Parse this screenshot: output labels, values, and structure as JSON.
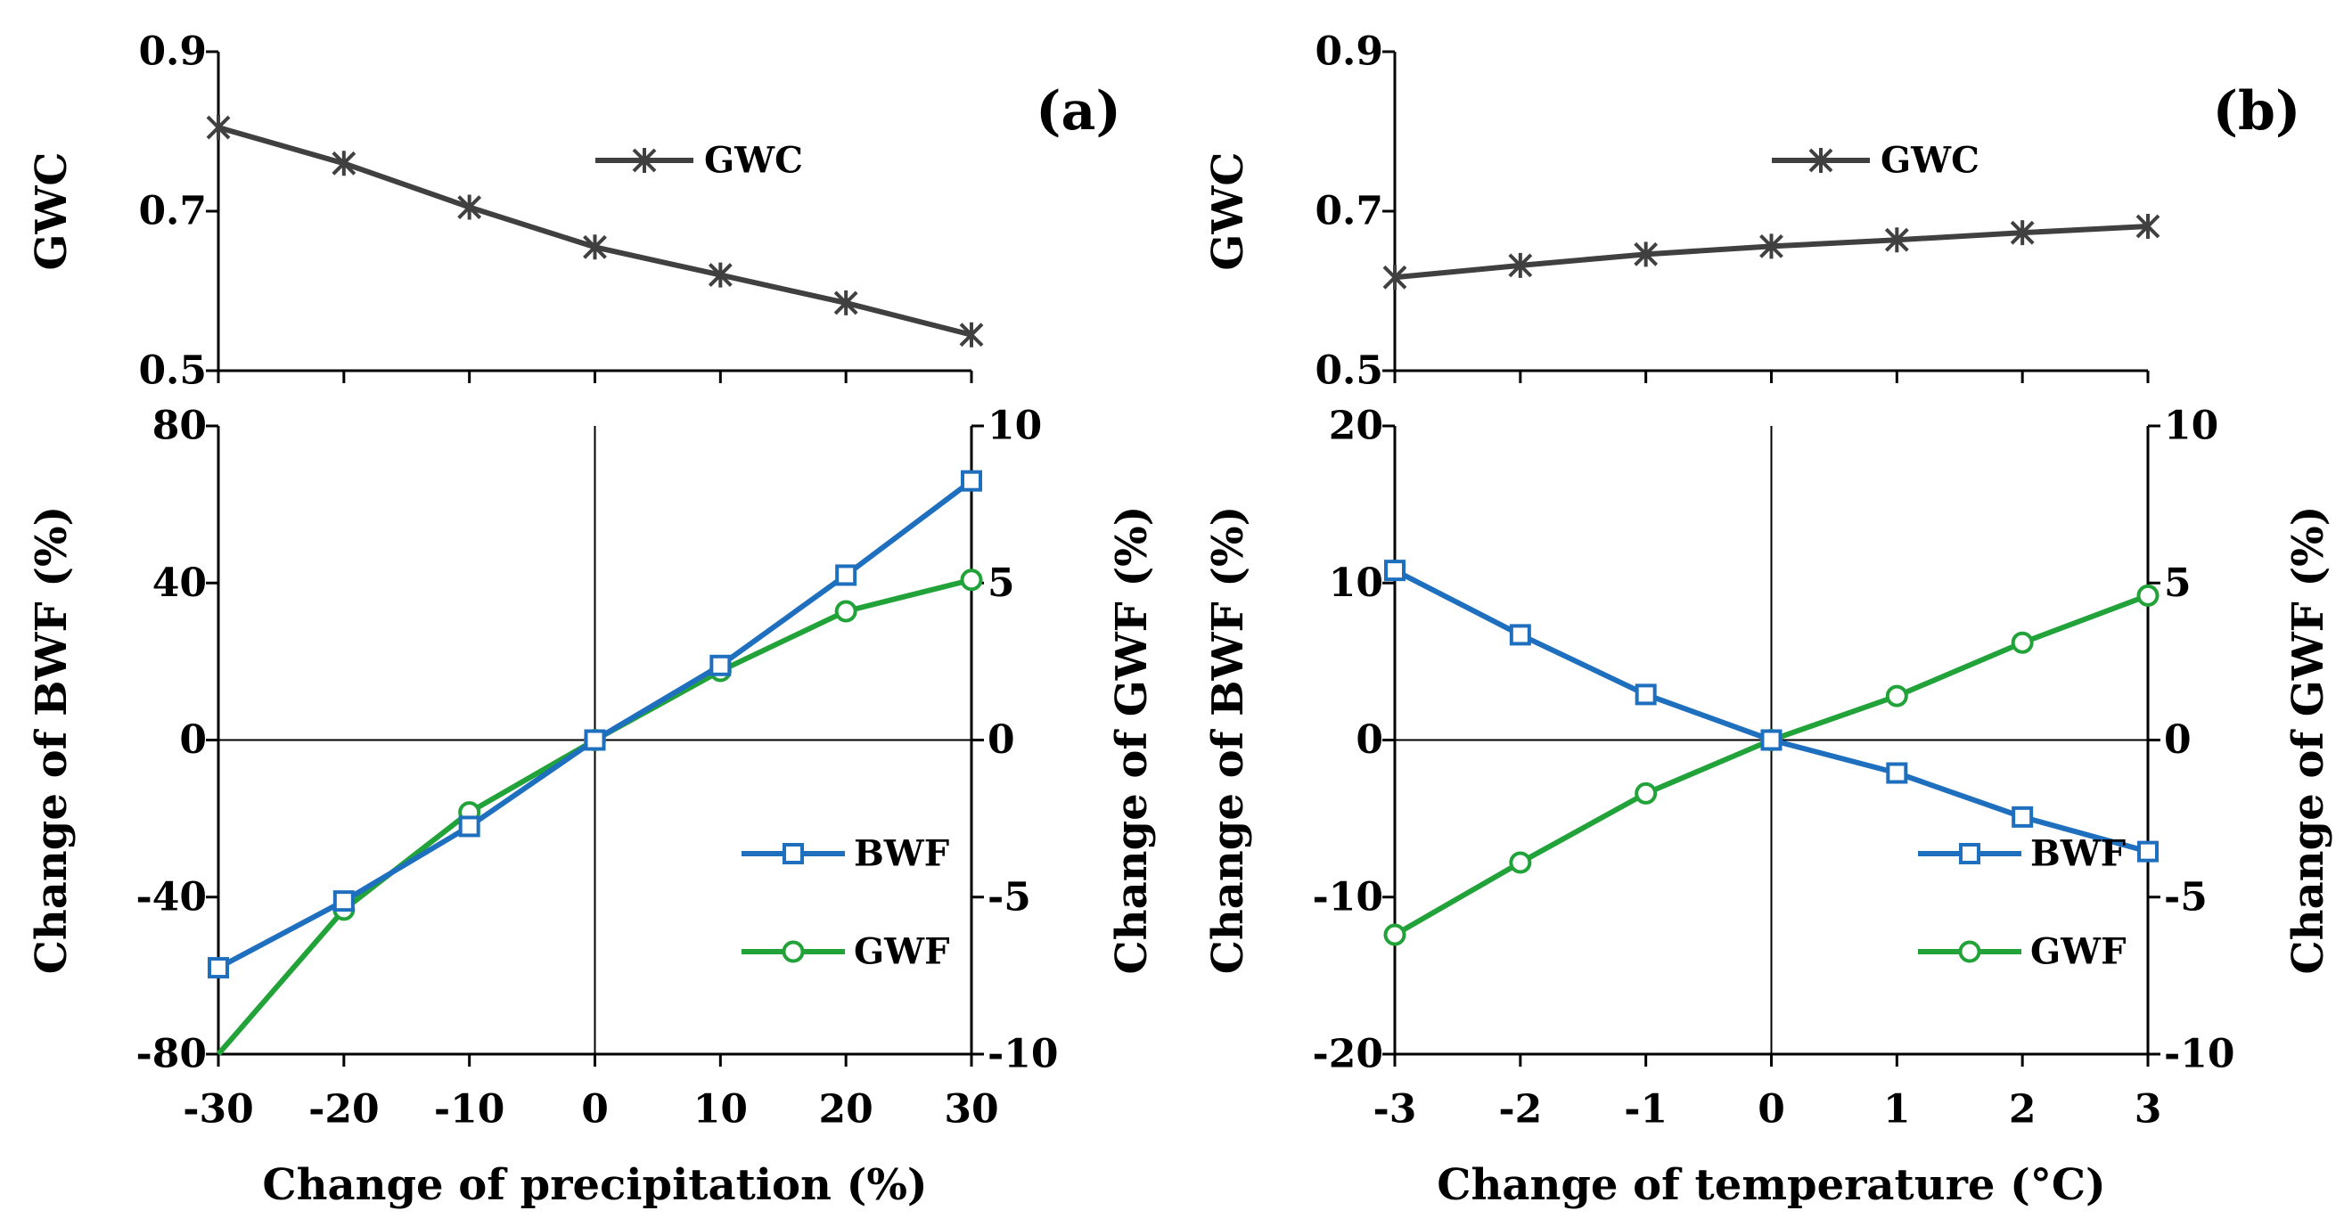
{
  "figure": {
    "panels": [
      {
        "tag": "(a)",
        "xlabel": "Change of precipitation (%)"
      },
      {
        "tag": "(b)",
        "xlabel": "Change of temperature (°C)"
      }
    ]
  },
  "chart_data": [
    {
      "type": "line",
      "panel": "a-top",
      "title": "",
      "x": [
        -30,
        -20,
        -10,
        0,
        10,
        20,
        30
      ],
      "xlabel": "",
      "ylabel": "GWC",
      "ylim": [
        0.5,
        0.9
      ],
      "yticks": [
        0.5,
        0.7,
        0.9
      ],
      "series": [
        {
          "name": "GWC",
          "color": "#404040",
          "marker": "asterisk",
          "values": [
            0.805,
            0.76,
            0.705,
            0.655,
            0.62,
            0.585,
            0.545
          ]
        }
      ]
    },
    {
      "type": "line",
      "panel": "a-bottom",
      "title": "",
      "x": [
        -30,
        -20,
        -10,
        0,
        10,
        20,
        30
      ],
      "xticks": [
        -30,
        -20,
        -10,
        0,
        10,
        20,
        30
      ],
      "xlabel": "Change of precipitation (%)",
      "ylabel": "Change of BWF (%)",
      "ylim": [
        -80,
        80
      ],
      "yticks": [
        -80,
        -40,
        0,
        40,
        80
      ],
      "y2label": "Change of GWF (%)",
      "y2lim": [
        -10,
        10
      ],
      "y2ticks": [
        -10,
        -5,
        0,
        5,
        10
      ],
      "series": [
        {
          "name": "BWF",
          "axis": "left",
          "color": "#1f6fbf",
          "marker": "square",
          "values": [
            -58,
            -41,
            -22,
            0,
            19,
            42,
            66
          ]
        },
        {
          "name": "GWF",
          "axis": "right",
          "color": "#22a33a",
          "marker": "circle",
          "values": [
            -10.0,
            -5.4,
            -2.3,
            0,
            2.2,
            4.1,
            5.1
          ]
        }
      ]
    },
    {
      "type": "line",
      "panel": "b-top",
      "title": "",
      "x": [
        -3,
        -2,
        -1,
        0,
        1,
        2,
        3
      ],
      "xlabel": "",
      "ylabel": "GWC",
      "ylim": [
        0.5,
        0.9
      ],
      "yticks": [
        0.5,
        0.7,
        0.9
      ],
      "series": [
        {
          "name": "GWC",
          "color": "#404040",
          "marker": "asterisk",
          "values": [
            0.617,
            0.632,
            0.646,
            0.656,
            0.664,
            0.673,
            0.681
          ]
        }
      ]
    },
    {
      "type": "line",
      "panel": "b-bottom",
      "title": "",
      "x": [
        -3,
        -2,
        -1,
        0,
        1,
        2,
        3
      ],
      "xticks": [
        -3,
        -2,
        -1,
        0,
        1,
        2,
        3
      ],
      "xlabel": "Change of temperature (°C)",
      "ylabel": "Change of BWF (%)",
      "ylim": [
        -20,
        20
      ],
      "yticks": [
        -20,
        -10,
        0,
        10,
        20
      ],
      "y2label": "Change of GWF (%)",
      "y2lim": [
        -10,
        10
      ],
      "y2ticks": [
        -10,
        -5,
        0,
        5,
        10
      ],
      "series": [
        {
          "name": "BWF",
          "axis": "left",
          "color": "#1f6fbf",
          "marker": "square",
          "values": [
            10.8,
            6.7,
            2.9,
            0,
            -2.1,
            -4.9,
            -7.1
          ]
        },
        {
          "name": "GWF",
          "axis": "right",
          "color": "#22a33a",
          "marker": "circle",
          "values": [
            -6.2,
            -3.9,
            -1.7,
            0,
            1.4,
            3.1,
            4.6
          ]
        }
      ]
    }
  ]
}
